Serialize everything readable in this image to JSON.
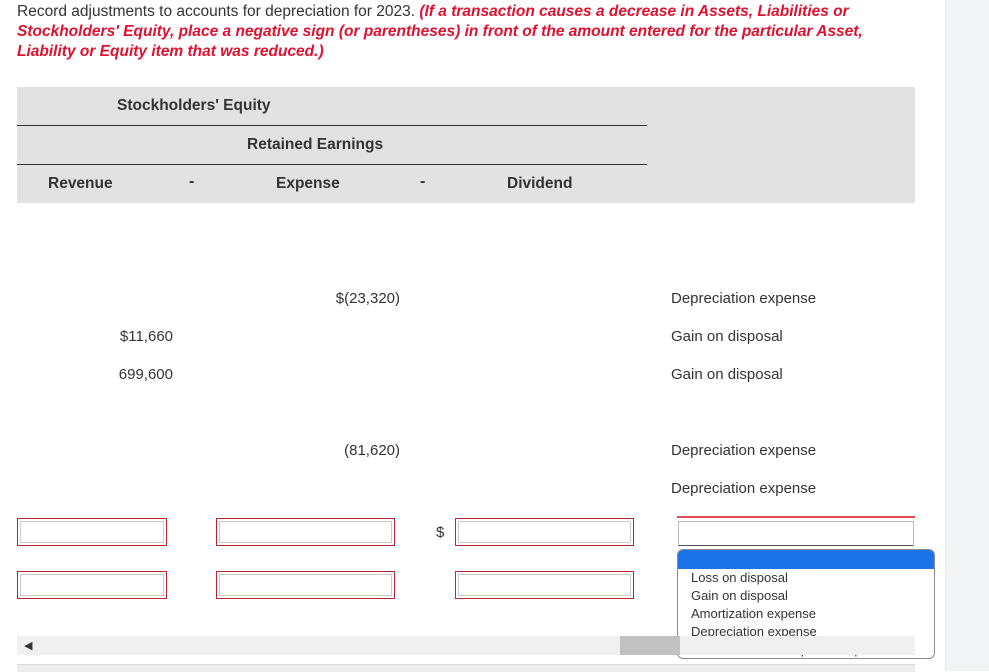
{
  "instructions": {
    "lead": "Record adjustments to accounts for depreciation for 2023. ",
    "note": "(If a transaction causes a decrease in Assets, Liabilities or Stockholders' Equity, place a negative sign (or parentheses) in front of the amount entered for the particular Asset, Liability or Equity item that was reduced.)"
  },
  "table_header": {
    "group": "Stockholders' Equity",
    "subgroup": "Retained Earnings",
    "col_revenue": "Revenue",
    "col_expense": "Expense",
    "col_dividend": "Dividend",
    "minus": "-"
  },
  "rows": [
    {
      "revenue": "",
      "expense": "$(23,320)",
      "account": "Depreciation expense"
    },
    {
      "revenue": "$11,660",
      "expense": "",
      "account": "Gain on disposal"
    },
    {
      "revenue": "699,600",
      "expense": "",
      "account": "Gain on disposal"
    },
    {
      "revenue": "",
      "expense": "(81,620)",
      "account": "Depreciation expense"
    },
    {
      "revenue": "",
      "expense": "",
      "account": "Depreciation expense"
    }
  ],
  "currency_symbol": "$",
  "dropdown": {
    "selected": "",
    "options": [
      "Loss on disposal",
      "Gain on disposal",
      "Amortization expense",
      "Depreciation expense",
      "Research & development expense"
    ]
  },
  "scroll_left_glyph": "◀"
}
